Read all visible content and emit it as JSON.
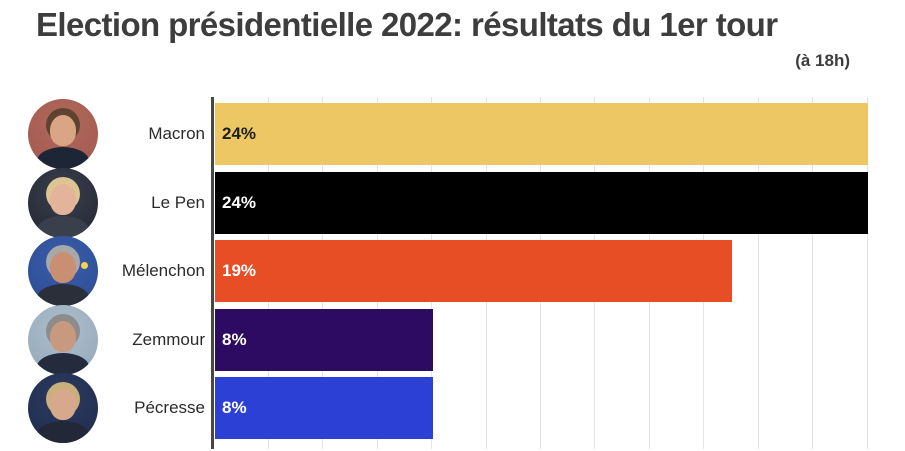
{
  "page": {
    "title": "Election présidentielle 2022: résultats du 1er tour",
    "subtitle": "(à 18h)"
  },
  "colors": {
    "background": "#ffffff",
    "title_text": "#3d3d3d",
    "category_text": "#2b2b2b",
    "axis_line": "#474747",
    "gridline": "#e4e4e4"
  },
  "chart_data": {
    "type": "bar",
    "orientation": "horizontal",
    "title": "Election présidentielle 2022: résultats du 1er tour",
    "subtitle": "(à 18h)",
    "categories": [
      "Macron",
      "Le Pen",
      "Mélenchon",
      "Zemmour",
      "Pécresse"
    ],
    "values": [
      24,
      24,
      19,
      8,
      8
    ],
    "value_labels": [
      "24%",
      "24%",
      "19%",
      "8%",
      "8%"
    ],
    "bar_colors": [
      "#ecc763",
      "#000000",
      "#e74e26",
      "#2e0b63",
      "#2d40d6"
    ],
    "value_label_colors": [
      "#1f1f1f",
      "#ffffff",
      "#ffffff",
      "#ffffff",
      "#ffffff"
    ],
    "xlim": [
      0,
      24
    ],
    "x_gridlines_percent": [
      2,
      4,
      6,
      8,
      10,
      12,
      14,
      16,
      18,
      20,
      22,
      24
    ],
    "grid": true,
    "legend": false,
    "avatar_palettes": [
      {
        "bg": "#a3574e",
        "bg2": "#b06a5c",
        "hair": "#5e4430",
        "skin": "#d9a584",
        "body": "#1c2637",
        "accent": ""
      },
      {
        "bg": "#232732",
        "bg2": "#3a3f4e",
        "hair": "#dcc593",
        "skin": "#e3b49a",
        "body": "#3a3f4c",
        "accent": ""
      },
      {
        "bg": "#2c4c94",
        "bg2": "#3a5ca8",
        "hair": "#a8a8a8",
        "skin": "#c98f72",
        "body": "#2a2f3a",
        "accent": "#f7d154"
      },
      {
        "bg": "#93a7b8",
        "bg2": "#aebfcc",
        "hair": "#8c8c8c",
        "skin": "#c7997f",
        "body": "#232b3d",
        "accent": ""
      },
      {
        "bg": "#1f2c4e",
        "bg2": "#2c3a60",
        "hair": "#c9af79",
        "skin": "#d8a88c",
        "body": "#232838",
        "accent": ""
      }
    ]
  }
}
